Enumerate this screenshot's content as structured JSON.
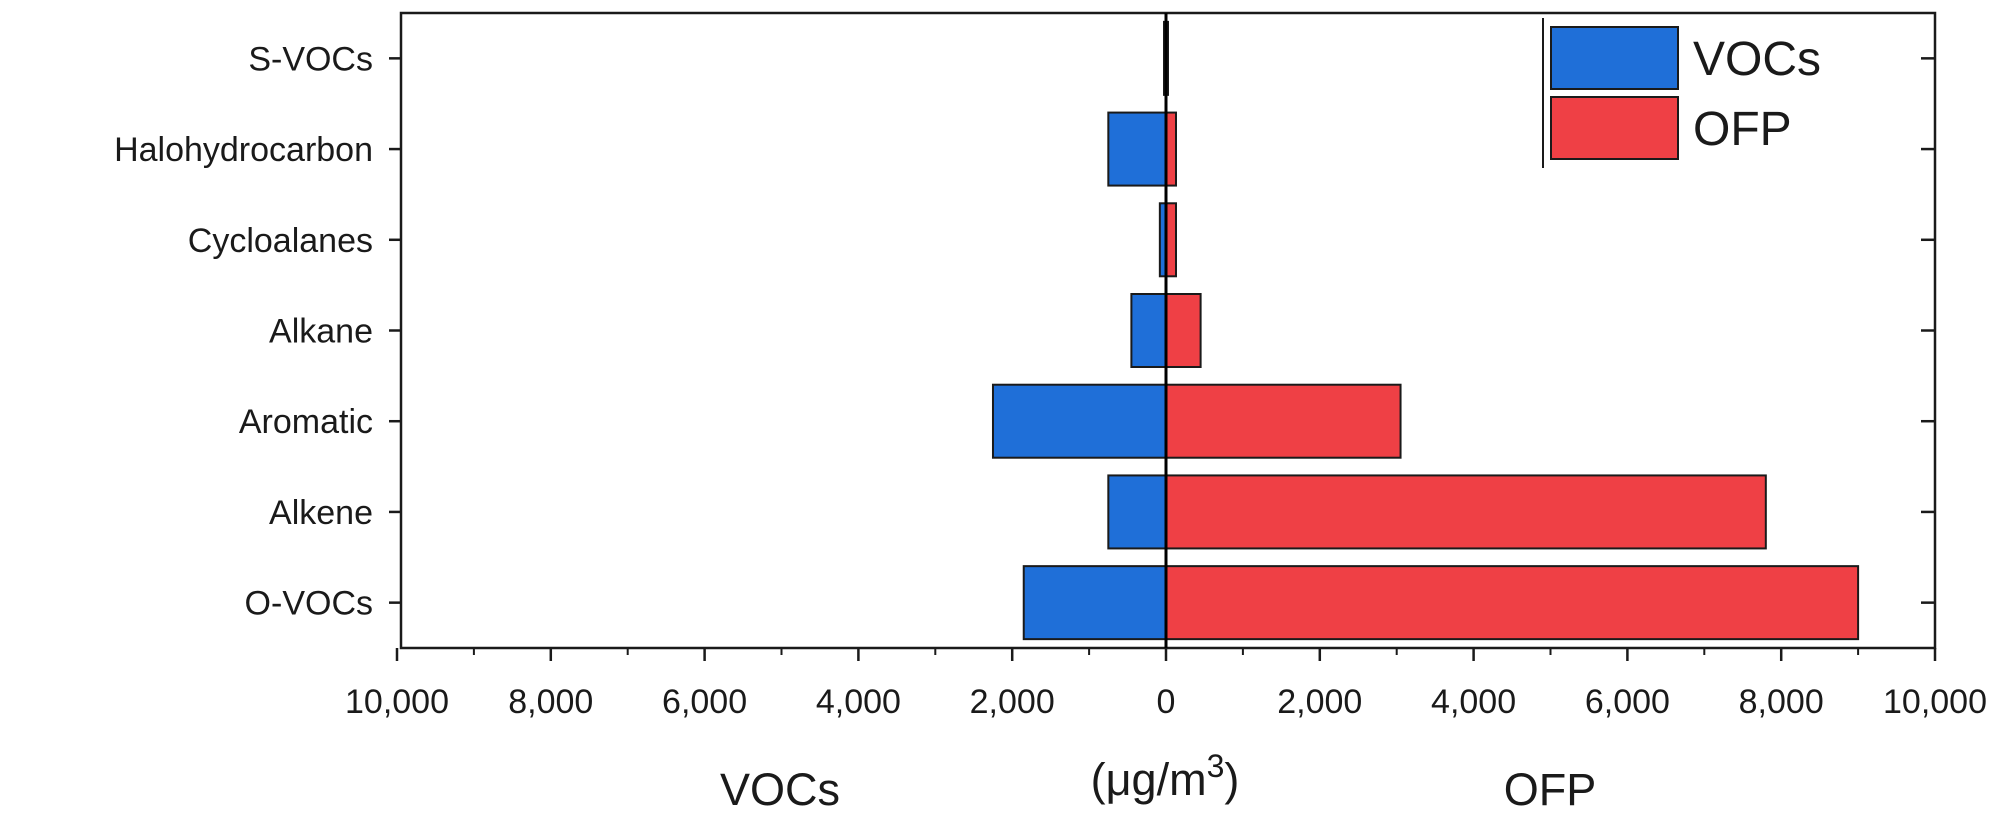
{
  "chart_data": {
    "type": "bar",
    "orientation": "horizontal-diverging",
    "categories": [
      "O-VOCs",
      "Alkene",
      "Aromatic",
      "Alkane",
      "Cycloalanes",
      "Halohydrocarbon",
      "S-VOCs"
    ],
    "series": [
      {
        "name": "VOCs",
        "values": [
          1850,
          750,
          2250,
          450,
          80,
          750,
          20
        ],
        "color": "#1f6fd8",
        "direction": "left"
      },
      {
        "name": "OFP",
        "values": [
          9000,
          7800,
          3050,
          450,
          130,
          130,
          10
        ],
        "color": "#ef4045",
        "direction": "right"
      }
    ],
    "xlim": [
      -10000,
      10000
    ],
    "x_ticks": [
      -10000,
      -8000,
      -6000,
      -4000,
      -2000,
      0,
      2000,
      4000,
      6000,
      8000,
      10000
    ],
    "x_tick_labels": [
      "10,000",
      "8,000",
      "6,000",
      "4,000",
      "2,000",
      "0",
      "2,000",
      "4,000",
      "6,000",
      "8,000",
      "10,000"
    ],
    "xlabel_left": "VOCs",
    "xlabel_center": "(μg/m",
    "xlabel_center_sup": "3",
    "xlabel_center_close": ")",
    "xlabel_right": "OFP",
    "legend": [
      "VOCs",
      "OFP"
    ],
    "legend_position": "top-right",
    "grid": false
  }
}
